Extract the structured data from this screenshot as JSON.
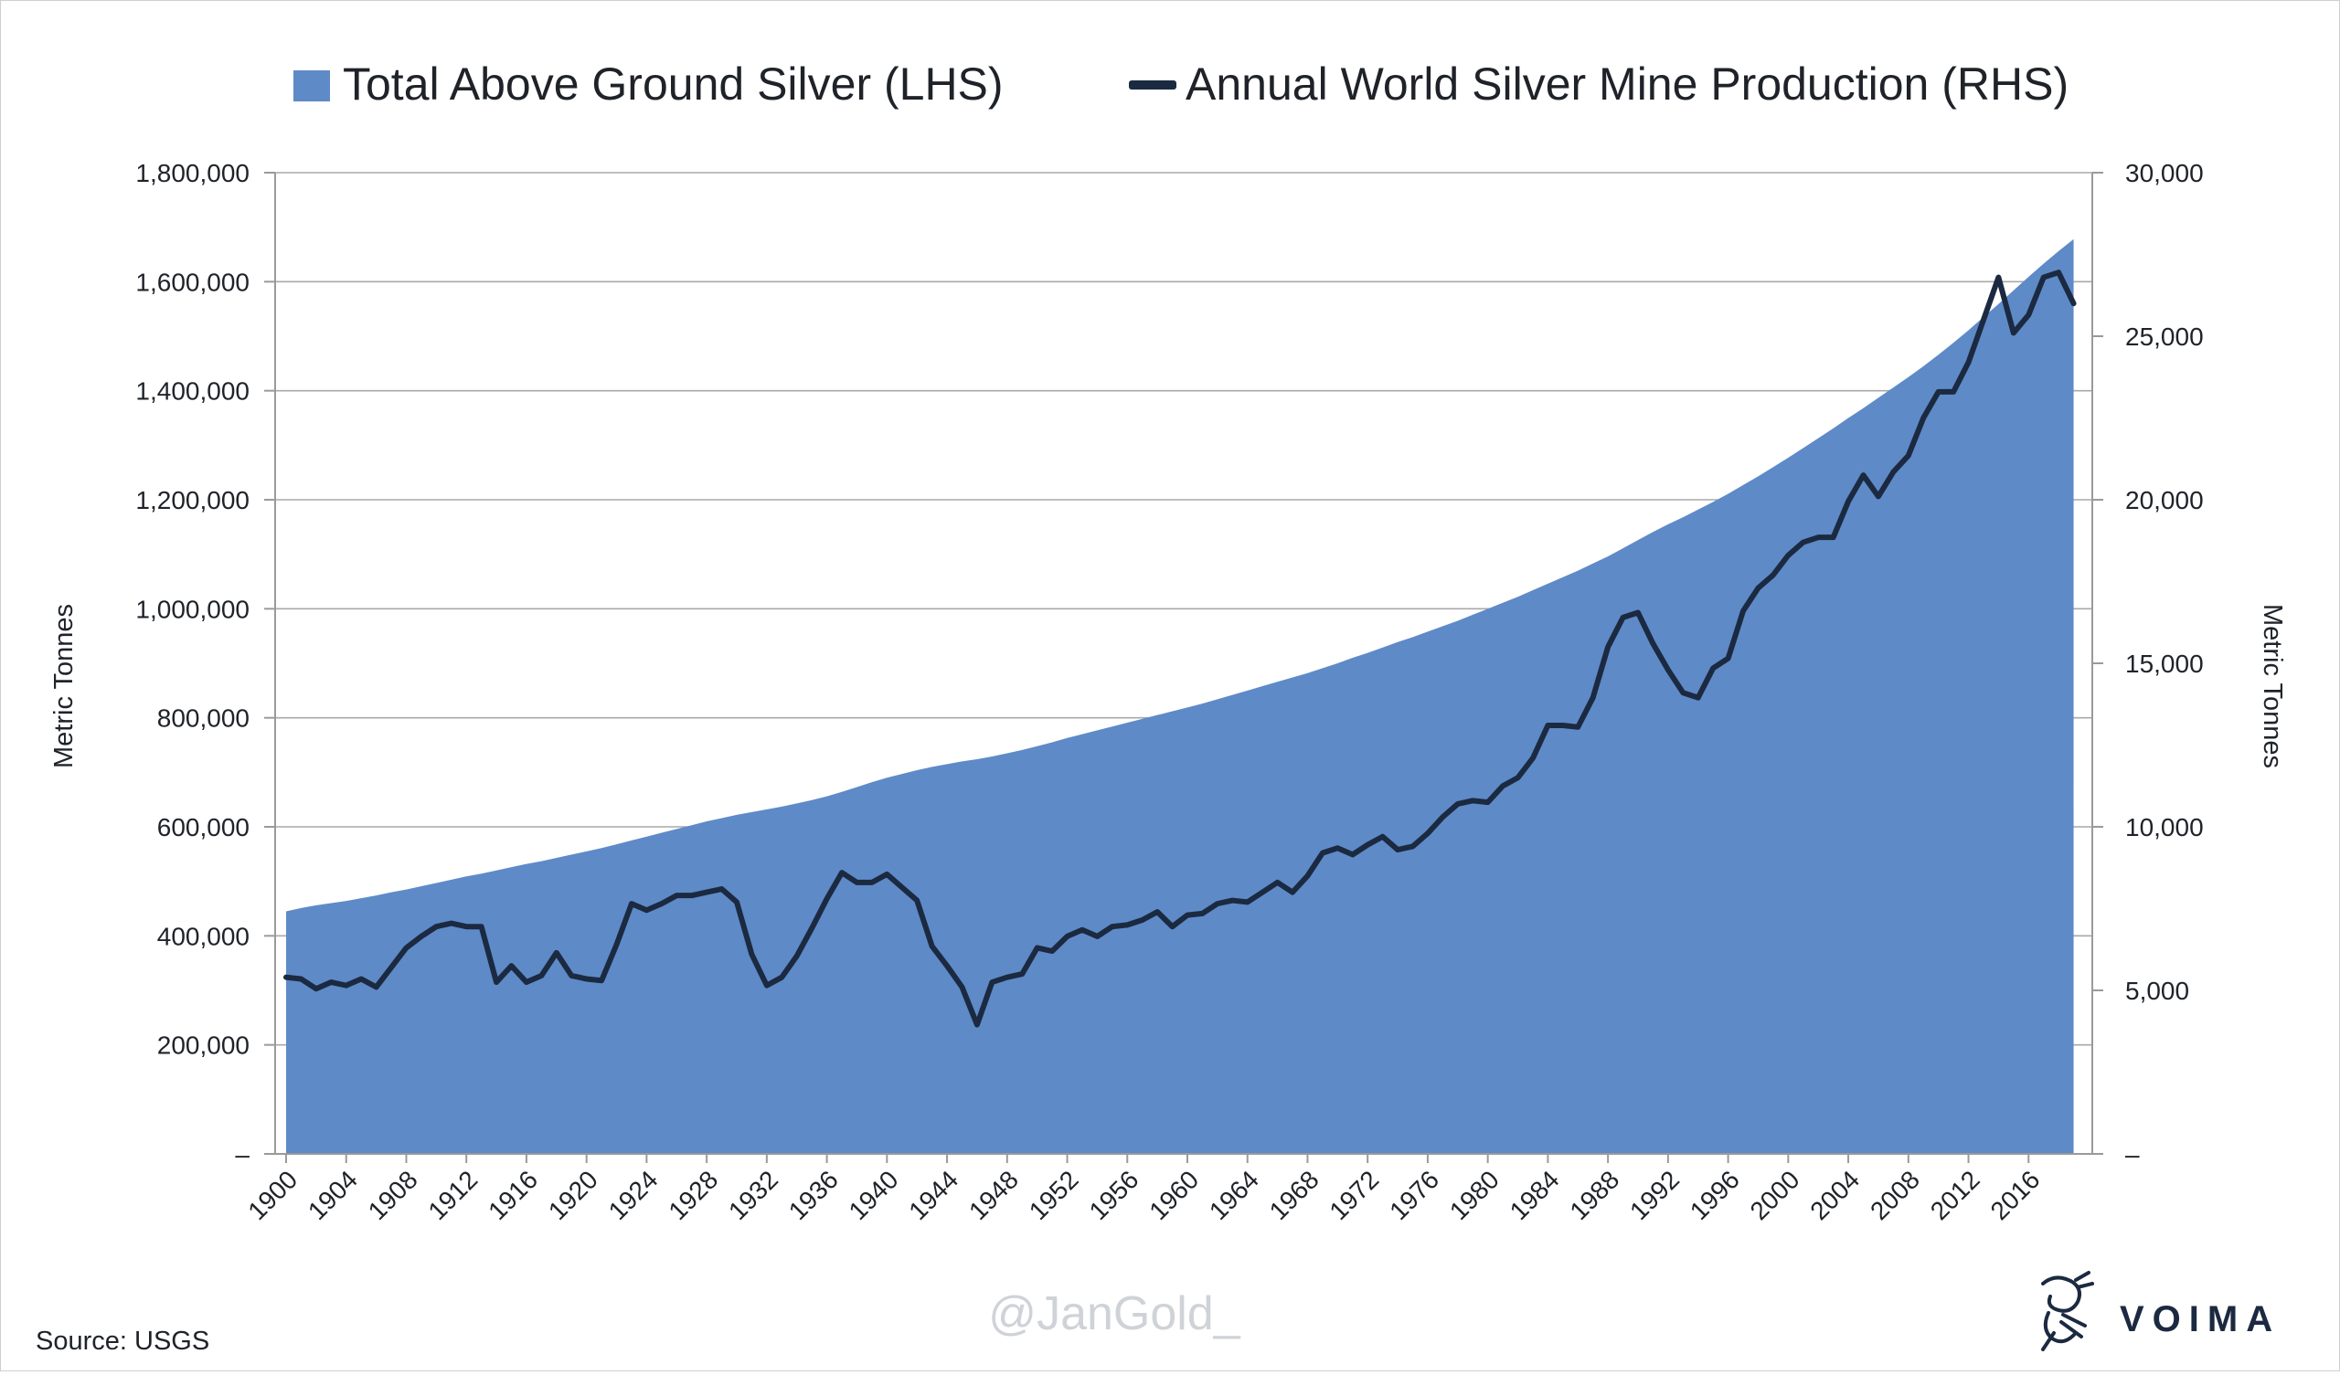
{
  "legend": {
    "area_label": "Total Above Ground Silver (LHS)",
    "line_label": "Annual World Silver Mine Production (RHS)"
  },
  "source_note": "Source: USGS",
  "watermark": "@JanGold_",
  "brand": {
    "name": "VOIMA",
    "logo_icon": "heraldic-lion-icon"
  },
  "colors": {
    "area": "#5e8ac8",
    "line": "#1b2a40",
    "grid": "#a8a8a8",
    "axis": "#9a9a9a"
  },
  "chart_data": {
    "type": "area",
    "title": "",
    "xlabel": "",
    "ylabel_left": "Metric Tonnes",
    "ylabel_right": "Metric Tonnes",
    "grid": true,
    "legend_position": "top",
    "xlim": [
      1900,
      2020
    ],
    "x_tick_labels": [
      "1900",
      "1904",
      "1908",
      "1912",
      "1916",
      "1920",
      "1924",
      "1928",
      "1932",
      "1936",
      "1940",
      "1944",
      "1948",
      "1952",
      "1956",
      "1960",
      "1964",
      "1968",
      "1972",
      "1976",
      "1980",
      "1984",
      "1988",
      "1992",
      "1996",
      "2000",
      "2004",
      "2008",
      "2012",
      "2016"
    ],
    "y_left": {
      "ylim": [
        0,
        1800000
      ],
      "ticks": [
        0,
        200000,
        400000,
        600000,
        800000,
        1000000,
        1200000,
        1400000,
        1600000,
        1800000
      ],
      "tick_labels": [
        "–",
        "200,000",
        "400,000",
        "600,000",
        "800,000",
        "1,000,000",
        "1,200,000",
        "1,400,000",
        "1,600,000",
        "1,800,000"
      ]
    },
    "y_right": {
      "ylim": [
        0,
        30000
      ],
      "ticks": [
        0,
        5000,
        10000,
        15000,
        20000,
        25000,
        30000
      ],
      "tick_labels": [
        "–",
        "5,000",
        "10,000",
        "15,000",
        "20,000",
        "25,000",
        "30,000"
      ]
    },
    "years": [
      1900,
      1901,
      1902,
      1903,
      1904,
      1905,
      1906,
      1907,
      1908,
      1909,
      1910,
      1911,
      1912,
      1913,
      1914,
      1915,
      1916,
      1917,
      1918,
      1919,
      1920,
      1921,
      1922,
      1923,
      1924,
      1925,
      1926,
      1927,
      1928,
      1929,
      1930,
      1931,
      1932,
      1933,
      1934,
      1935,
      1936,
      1937,
      1938,
      1939,
      1940,
      1941,
      1942,
      1943,
      1944,
      1945,
      1946,
      1947,
      1948,
      1949,
      1950,
      1951,
      1952,
      1953,
      1954,
      1955,
      1956,
      1957,
      1958,
      1959,
      1960,
      1961,
      1962,
      1963,
      1964,
      1965,
      1966,
      1967,
      1968,
      1969,
      1970,
      1971,
      1972,
      1973,
      1974,
      1975,
      1976,
      1977,
      1978,
      1979,
      1980,
      1981,
      1982,
      1983,
      1984,
      1985,
      1986,
      1987,
      1988,
      1989,
      1990,
      1991,
      1992,
      1993,
      1994,
      1995,
      1996,
      1997,
      1998,
      1999,
      2000,
      2001,
      2002,
      2003,
      2004,
      2005,
      2006,
      2007,
      2008,
      2009,
      2010,
      2011,
      2012,
      2013,
      2014,
      2015,
      2016,
      2017,
      2018,
      2019
    ],
    "series": [
      {
        "name": "Total Above Ground Silver (LHS)",
        "axis": "left",
        "kind": "area",
        "values": [
          445000,
          451000,
          456000,
          460000,
          464000,
          469000,
          474000,
          480000,
          485000,
          491000,
          497000,
          503000,
          509000,
          514000,
          520000,
          526000,
          532000,
          537000,
          543000,
          549000,
          555000,
          561000,
          568000,
          575000,
          582000,
          589000,
          596000,
          603000,
          610000,
          616000,
          622000,
          627000,
          632000,
          637000,
          643000,
          649000,
          656000,
          664000,
          673000,
          682000,
          690000,
          697000,
          704000,
          710000,
          715000,
          720000,
          724000,
          729000,
          735000,
          741000,
          748000,
          755000,
          763000,
          770000,
          777000,
          784000,
          791000,
          798000,
          805000,
          812000,
          819000,
          826000,
          834000,
          842000,
          850000,
          858000,
          866000,
          874000,
          882000,
          891000,
          900000,
          910000,
          919000,
          929000,
          939000,
          948000,
          958000,
          968000,
          978000,
          989000,
          1000000,
          1011000,
          1022000,
          1034000,
          1046000,
          1058000,
          1070000,
          1083000,
          1096000,
          1111000,
          1126000,
          1141000,
          1155000,
          1168000,
          1182000,
          1196000,
          1211000,
          1227000,
          1243000,
          1260000,
          1277000,
          1295000,
          1313000,
          1331000,
          1350000,
          1368000,
          1387000,
          1406000,
          1425000,
          1445000,
          1466000,
          1488000,
          1511000,
          1535000,
          1559000,
          1584000,
          1609000,
          1633000,
          1656000,
          1678000
        ]
      },
      {
        "name": "Annual World Silver Mine Production (RHS)",
        "axis": "right",
        "kind": "line",
        "values": [
          5400,
          5350,
          5050,
          5250,
          5150,
          5350,
          5100,
          5700,
          6300,
          6650,
          6950,
          7050,
          6950,
          6950,
          5250,
          5750,
          5250,
          5450,
          6150,
          5450,
          5350,
          5300,
          6400,
          7650,
          7450,
          7650,
          7900,
          7900,
          8000,
          8100,
          7700,
          6100,
          5150,
          5400,
          6050,
          6900,
          7800,
          8600,
          8300,
          8300,
          8550,
          8150,
          7750,
          6350,
          5750,
          5100,
          3950,
          5250,
          5400,
          5500,
          6300,
          6200,
          6650,
          6850,
          6650,
          6950,
          7000,
          7150,
          7400,
          6950,
          7300,
          7350,
          7650,
          7750,
          7700,
          8000,
          8300,
          8000,
          8500,
          9200,
          9350,
          9150,
          9450,
          9700,
          9300,
          9400,
          9800,
          10300,
          10700,
          10800,
          10750,
          11250,
          11500,
          12100,
          13100,
          13100,
          13050,
          13950,
          15500,
          16400,
          16550,
          15600,
          14800,
          14100,
          13950,
          14850,
          15150,
          16600,
          17300,
          17700,
          18300,
          18700,
          18850,
          18850,
          19950,
          20750,
          20100,
          20850,
          21350,
          22500,
          23300,
          23300,
          24200,
          25500,
          26800,
          25100,
          25650,
          26800,
          26950,
          26000
        ]
      }
    ]
  }
}
